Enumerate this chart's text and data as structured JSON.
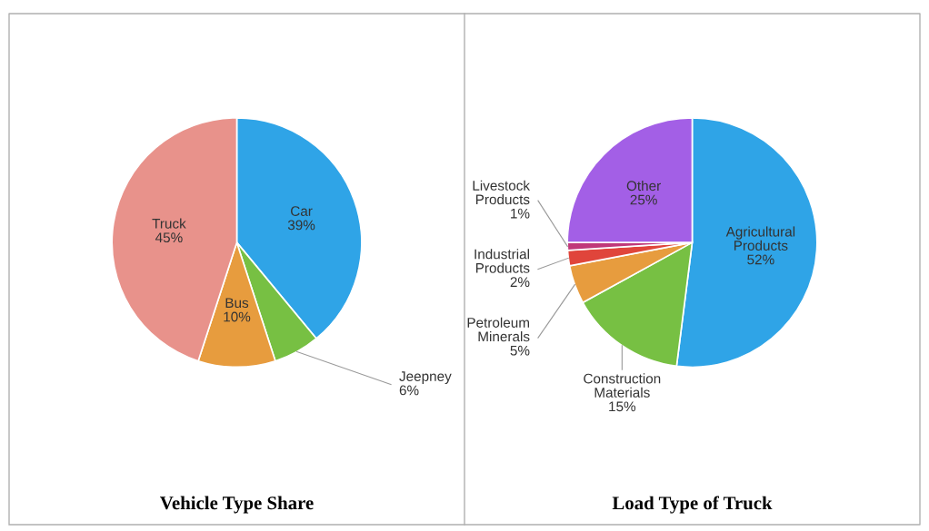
{
  "chart_data": [
    {
      "type": "pie",
      "title": "Vehicle Type Share",
      "categories": [
        "Car",
        "Jeepney",
        "Bus",
        "Truck"
      ],
      "values": [
        39,
        6,
        10,
        45
      ],
      "colors": [
        "#2fa4e7",
        "#77c043",
        "#e79c3e",
        "#e8928b"
      ],
      "value_labels": [
        "39%",
        "6%",
        "10%",
        "45%"
      ]
    },
    {
      "type": "pie",
      "title": "Load Type of Truck",
      "categories": [
        "Agricultural Products",
        "Construction Materials",
        "Petroleum Minerals",
        "Industrial Products",
        "Livestock Products",
        "Other"
      ],
      "values": [
        52,
        15,
        5,
        2,
        1,
        25
      ],
      "colors": [
        "#2fa4e7",
        "#77c043",
        "#e79c3e",
        "#e0453b",
        "#c0387a",
        "#a35fe6"
      ],
      "value_labels": [
        "52%",
        "15%",
        "5%",
        "2%",
        "1%",
        "25%"
      ]
    }
  ]
}
